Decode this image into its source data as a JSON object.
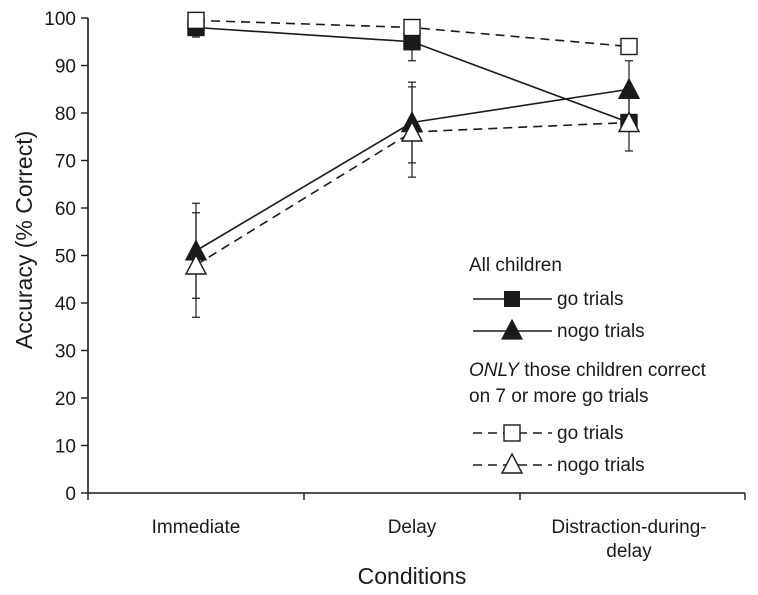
{
  "chart_data": {
    "type": "line",
    "xlabel": "Conditions",
    "ylabel": "Accuracy (% Correct)",
    "ylim": [
      0,
      100
    ],
    "yticks": [
      0,
      10,
      20,
      30,
      40,
      50,
      60,
      70,
      80,
      90,
      100
    ],
    "categories": [
      [
        "Immediate"
      ],
      [
        "Delay"
      ],
      [
        "Distraction-during-",
        "delay"
      ]
    ],
    "grid": false,
    "legend_position": "right-middle",
    "series": [
      {
        "name": "go trials",
        "group": "all",
        "marker": "filled-square",
        "line": "solid",
        "values": [
          98,
          95,
          78
        ],
        "errors": [
          2,
          4,
          6
        ]
      },
      {
        "name": "nogo trials",
        "group": "all",
        "marker": "filled-triangle",
        "line": "solid",
        "values": [
          51,
          78,
          85
        ],
        "errors": [
          10,
          8.5,
          6
        ]
      },
      {
        "name": "go trials",
        "group": "only",
        "marker": "open-square",
        "line": "dashed",
        "values": [
          99.5,
          98,
          94
        ],
        "errors": [
          0,
          0,
          0
        ]
      },
      {
        "name": "nogo trials",
        "group": "only",
        "marker": "open-triangle",
        "line": "dashed",
        "values": [
          48,
          76,
          78
        ],
        "errors": [
          11,
          9.5,
          0
        ]
      }
    ],
    "legend": {
      "group_all_title": "All children",
      "group_only_italic": "ONLY",
      "group_only_title_line1_rest": " those children correct",
      "group_only_title_line2": "on 7 or more go trials"
    },
    "colors": {
      "ink": "#1a1a1a",
      "background": "#ffffff"
    }
  }
}
